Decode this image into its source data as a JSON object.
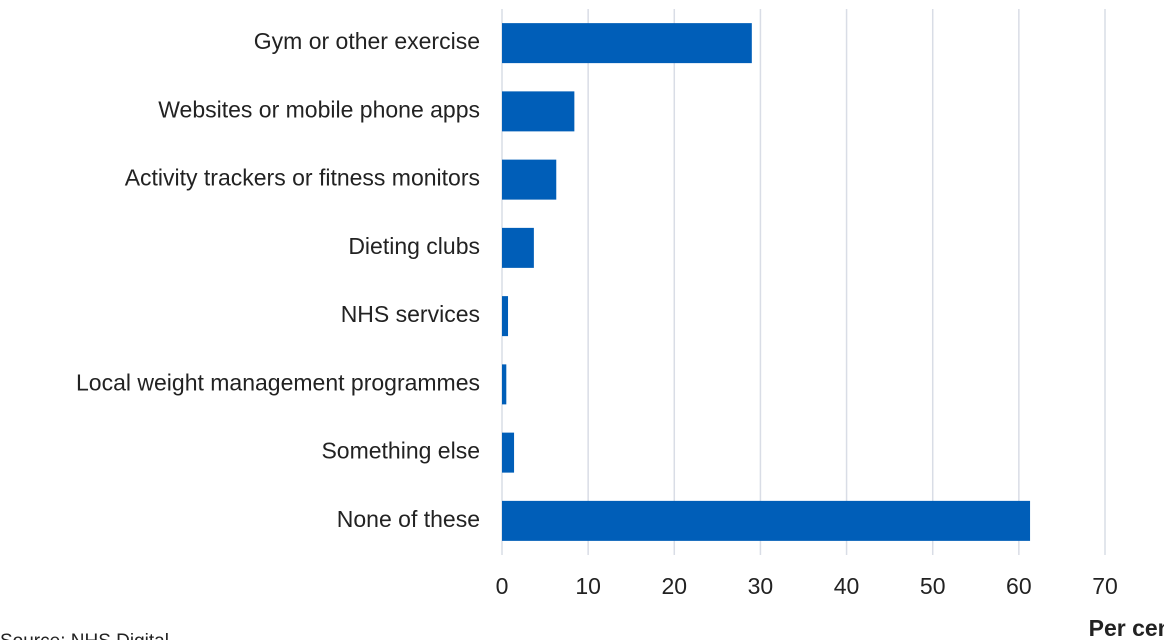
{
  "chart_data": {
    "type": "hbar",
    "categories": [
      "Gym or other exercise",
      "Websites or mobile phone apps",
      "Activity trackers or fitness monitors",
      "Dieting clubs",
      "NHS services",
      "Local weight management programmes",
      "Something else",
      "None of these"
    ],
    "values": [
      29.0,
      8.4,
      6.3,
      3.7,
      0.7,
      0.5,
      1.4,
      61.3
    ],
    "color": "#005eb8",
    "xlim": [
      0,
      70
    ],
    "xticks": [
      0,
      10,
      20,
      30,
      40,
      50,
      60,
      70
    ],
    "x_label": "Per cent",
    "grid": true,
    "source": "Source: NHS Digital"
  }
}
